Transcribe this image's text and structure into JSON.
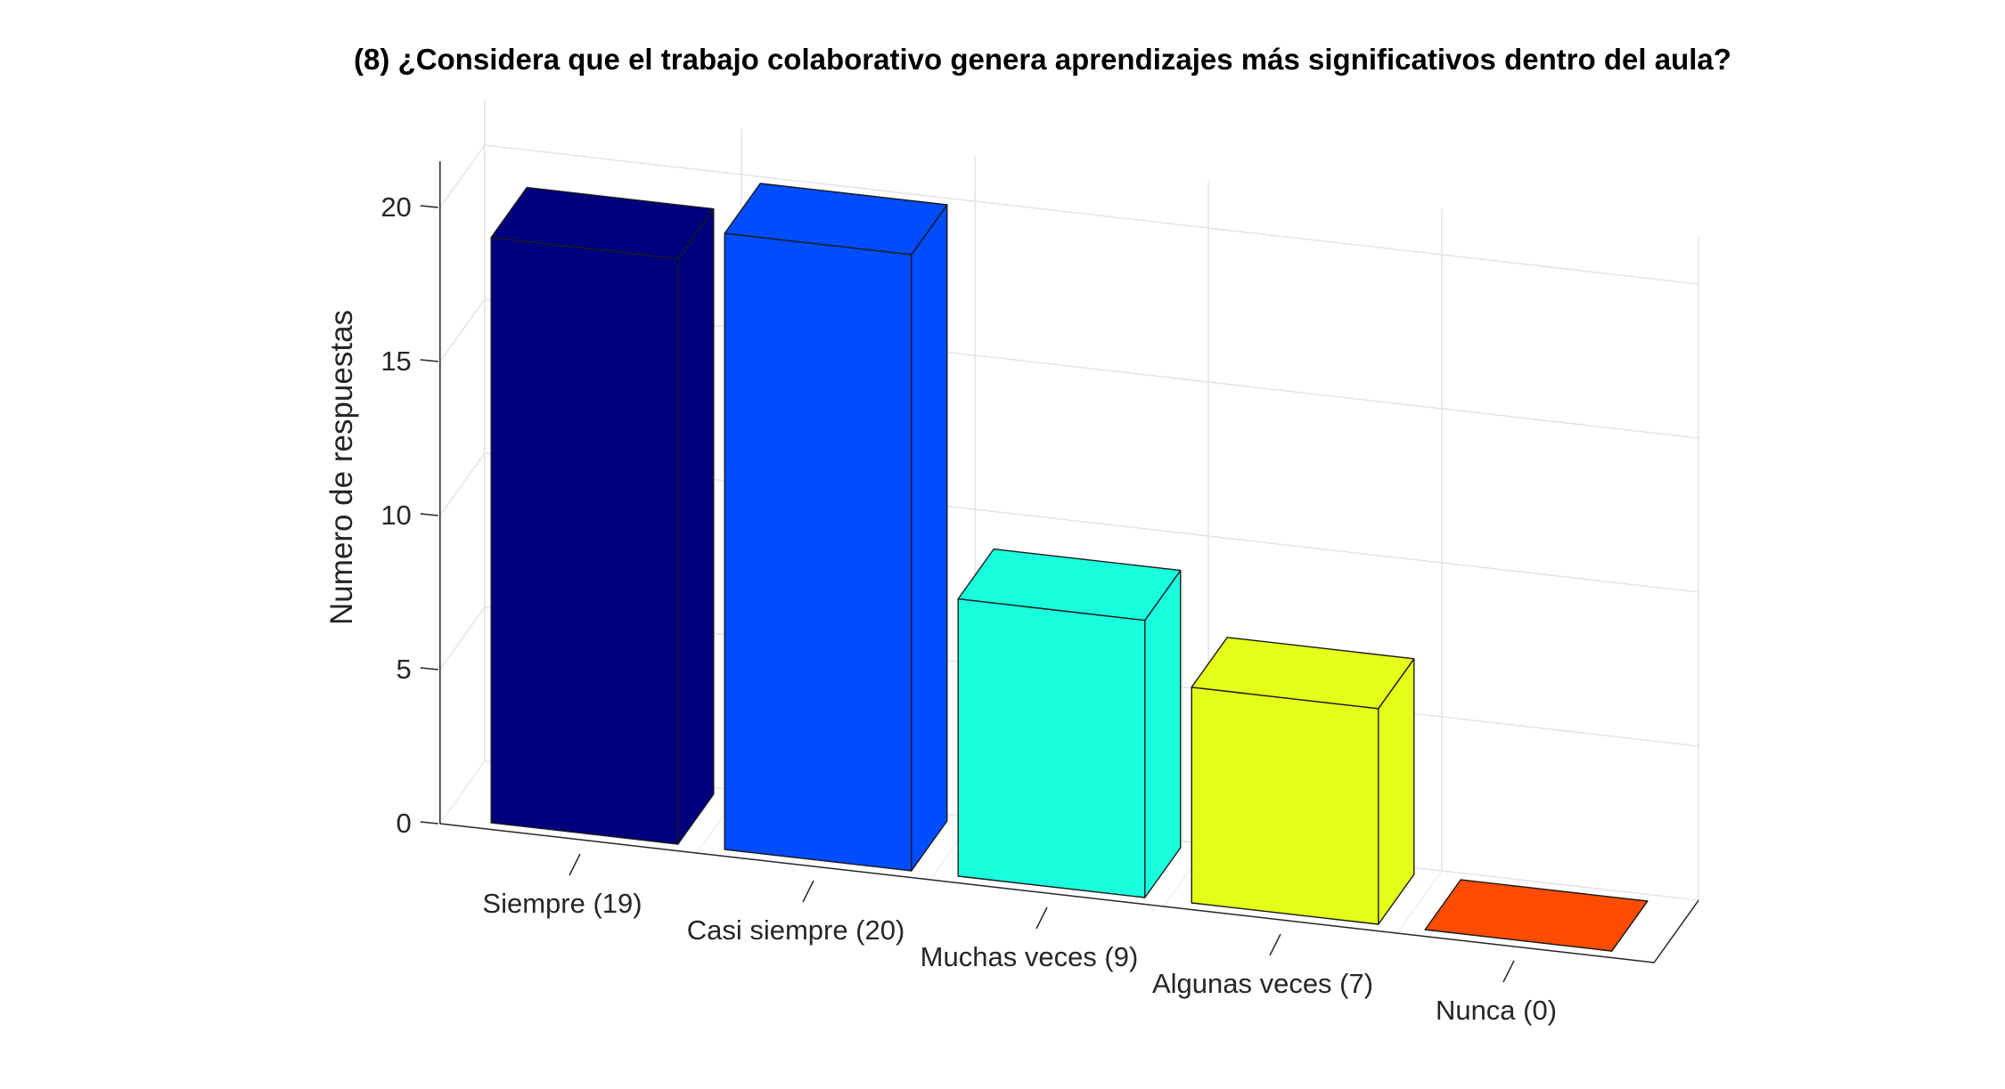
{
  "chart_data": {
    "type": "bar",
    "title": "(8) ¿Considera que el trabajo colaborativo genera aprendizajes más significativos dentro del aula?",
    "ylabel": "Numero de respuestas",
    "xlabel": "",
    "categories": [
      "Siempre (19)",
      "Casi siempre (20)",
      "Muchas veces (9)",
      "Algunas veces (7)",
      "Nunca (0)"
    ],
    "values": [
      19,
      20,
      9,
      7,
      0
    ],
    "colors": [
      "#00007F",
      "#004CFF",
      "#19FFDE",
      "#E5FF19",
      "#FF4C00"
    ],
    "ylim": [
      0,
      20
    ],
    "yticks": [
      "0",
      "5",
      "10",
      "15",
      "20"
    ],
    "grid": true,
    "projection": "3d"
  }
}
